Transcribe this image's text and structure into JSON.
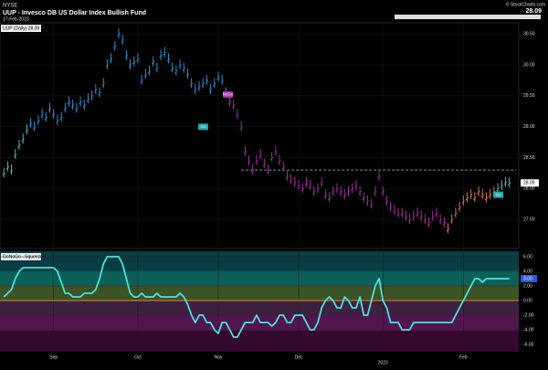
{
  "header": {
    "exchange": "NYSE",
    "title": "UUP - Invesco DB US Dollar Index Bullish Fund",
    "date": "17-Feb-2023",
    "source": "© StockCharts.com"
  },
  "chart_data": {
    "type": "price-bars",
    "legend": "UUP (Daily) 28.09",
    "last_price": 28.09,
    "xlim": [
      -1,
      134
    ],
    "xticks": [
      {
        "value": 13,
        "label": "Sep"
      },
      {
        "value": 35,
        "label": "Oct"
      },
      {
        "value": 56,
        "label": "Nov"
      },
      {
        "value": 77,
        "label": "Dec"
      },
      {
        "value": 99,
        "label": "2023"
      },
      {
        "value": 120,
        "label": "Feb"
      }
    ],
    "ylim": [
      27.03,
      30.68
    ],
    "yticks": [
      {
        "value": 30.5,
        "label": "30.50"
      },
      {
        "value": 30,
        "label": "30.00"
      },
      {
        "value": 29.5,
        "label": "29.50"
      },
      {
        "value": 29,
        "label": "29.00"
      },
      {
        "value": 28.5,
        "label": "28.50"
      },
      {
        "value": 28,
        "label": "28.00"
      },
      {
        "value": 27.5,
        "label": "27.50"
      }
    ],
    "reference_line": 28.3,
    "annotations": [
      "NoGo",
      "Go",
      "Go"
    ],
    "values": [
      28.25,
      28.35,
      28.3,
      28.55,
      28.7,
      28.8,
      28.95,
      29.05,
      29.0,
      29.1,
      29.2,
      29.15,
      29.3,
      29.2,
      29.1,
      29.15,
      29.3,
      29.4,
      29.35,
      29.3,
      29.4,
      29.35,
      29.45,
      29.5,
      29.6,
      29.55,
      29.7,
      30.0,
      30.1,
      30.3,
      30.5,
      30.4,
      30.15,
      30.0,
      30.05,
      30.1,
      29.75,
      29.85,
      29.9,
      30.05,
      29.95,
      30.15,
      30.2,
      30.1,
      29.95,
      29.9,
      30.0,
      29.95,
      29.85,
      29.7,
      29.6,
      29.65,
      29.7,
      29.75,
      29.6,
      29.7,
      29.8,
      29.75,
      29.55,
      29.4,
      29.35,
      29.2,
      29.0,
      28.6,
      28.45,
      28.3,
      28.45,
      28.55,
      28.4,
      28.3,
      28.5,
      28.6,
      28.45,
      28.35,
      28.2,
      28.15,
      28.1,
      28.05,
      28.0,
      28.1,
      28.05,
      27.95,
      28.0,
      28.1,
      27.9,
      27.85,
      27.95,
      28.0,
      27.95,
      27.9,
      27.95,
      28.0,
      28.05,
      27.95,
      27.85,
      27.8,
      27.75,
      27.95,
      28.2,
      27.95,
      27.8,
      27.7,
      27.65,
      27.6,
      27.6,
      27.55,
      27.5,
      27.55,
      27.6,
      27.55,
      27.5,
      27.45,
      27.55,
      27.6,
      27.5,
      27.45,
      27.35,
      27.5,
      27.6,
      27.7,
      27.8,
      27.85,
      27.9,
      27.85,
      27.95,
      27.9,
      27.85,
      27.9,
      27.95,
      28.0,
      28.05,
      28.1,
      28.09
    ],
    "bar_colors": [
      "#5cc",
      "#5cc",
      "#5cc",
      "#5cc",
      "#5cc",
      "#5cc",
      "#5cc",
      "#39d",
      "#39d",
      "#39d",
      "#39d",
      "#39d",
      "#39d",
      "#39d",
      "#39d",
      "#39d",
      "#39d",
      "#39d",
      "#39d",
      "#39d",
      "#39d",
      "#39d",
      "#39d",
      "#39d",
      "#39d",
      "#39d",
      "#39d",
      "#39d",
      "#39d",
      "#39d",
      "#39d",
      "#39d",
      "#39d",
      "#39d",
      "#39d",
      "#39d",
      "#39d",
      "#39d",
      "#39d",
      "#39d",
      "#39d",
      "#39d",
      "#39d",
      "#39d",
      "#39d",
      "#39d",
      "#39d",
      "#39d",
      "#39d",
      "#39d",
      "#39d",
      "#39d",
      "#39d",
      "#39d",
      "#39d",
      "#39d",
      "#39d",
      "#39d",
      "#39d",
      "#a3a",
      "#a3a",
      "#a3a",
      "#a3a",
      "#a3a",
      "#a3a",
      "#a3a",
      "#a3a",
      "#a3a",
      "#a3a",
      "#a3a",
      "#a3a",
      "#a3a",
      "#a3a",
      "#a3a",
      "#a3a",
      "#a3a",
      "#a3a",
      "#a3a",
      "#a3a",
      "#a3a",
      "#a3a",
      "#a3a",
      "#a3a",
      "#a3a",
      "#a3a",
      "#a3a",
      "#a3a",
      "#a3a",
      "#a3a",
      "#a3a",
      "#a3a",
      "#a3a",
      "#a3a",
      "#a3a",
      "#a3a",
      "#a3a",
      "#a3a",
      "#a3a",
      "#a3a",
      "#a3a",
      "#a3a",
      "#a3a",
      "#a3a",
      "#a3a",
      "#a3a",
      "#a3a",
      "#a3a",
      "#a3a",
      "#a3a",
      "#a3a",
      "#a3a",
      "#a3a",
      "#a3a",
      "#a3a",
      "#a3a",
      "#a3a",
      "#d84",
      "#d84",
      "#d84",
      "#d84",
      "#d84",
      "#d84",
      "#d84",
      "#d84",
      "#d84",
      "#d84",
      "#d84",
      "#d84",
      "#d84",
      "#5cc",
      "#5cc",
      "#5cc",
      "#5cc"
    ],
    "oscillator": {
      "name": "GoNoGo - Squeeze",
      "color": "#4de0e0",
      "ylim": [
        -7,
        6.75
      ],
      "yticks": [
        {
          "value": 6,
          "label": "6.00"
        },
        {
          "value": 4,
          "label": "4.00"
        },
        {
          "value": 2,
          "label": "2.00"
        },
        {
          "value": 0,
          "label": "0.00"
        },
        {
          "value": -2,
          "label": "-2.00"
        },
        {
          "value": -4,
          "label": "-4.00"
        },
        {
          "value": -6,
          "label": "-6.00"
        }
      ],
      "last": {
        "value": 3,
        "label": "3.00"
      },
      "values": [
        0.5,
        1,
        1.5,
        3,
        4,
        4.5,
        4.5,
        4.5,
        4.5,
        4.5,
        4.5,
        4.5,
        4.5,
        4.5,
        4,
        2.5,
        1,
        1,
        0.5,
        0.5,
        0.5,
        1,
        1,
        1,
        1.5,
        3,
        5,
        6,
        6,
        6,
        6,
        5,
        3,
        1,
        0.5,
        0.5,
        1,
        0.5,
        0.5,
        0.5,
        1,
        0.5,
        0.5,
        0.5,
        0.5,
        0.5,
        1,
        0.5,
        -0.5,
        -2,
        -3,
        -2,
        -2,
        -3,
        -3,
        -4,
        -4.5,
        -3,
        -3,
        -4,
        -5,
        -5,
        -4,
        -3,
        -3,
        -3,
        -2,
        -3,
        -3,
        -3,
        -3.5,
        -3,
        -2,
        -2,
        -3,
        -3,
        -2,
        -2,
        -2,
        -3,
        -4,
        -4,
        -3,
        -1,
        0,
        0.5,
        0,
        -1,
        -1,
        0.5,
        0,
        -1,
        -1,
        0.5,
        -2,
        -2,
        0,
        2,
        3,
        0,
        -1,
        -3,
        -3,
        -3,
        -4,
        -4,
        -4,
        -3,
        -3,
        -3,
        -3,
        -3,
        -3,
        -3,
        -3,
        -3,
        -3,
        -3,
        -2,
        -1,
        0,
        1,
        2,
        3,
        3,
        2.5,
        3,
        3,
        3,
        3,
        3,
        3,
        3
      ]
    }
  }
}
